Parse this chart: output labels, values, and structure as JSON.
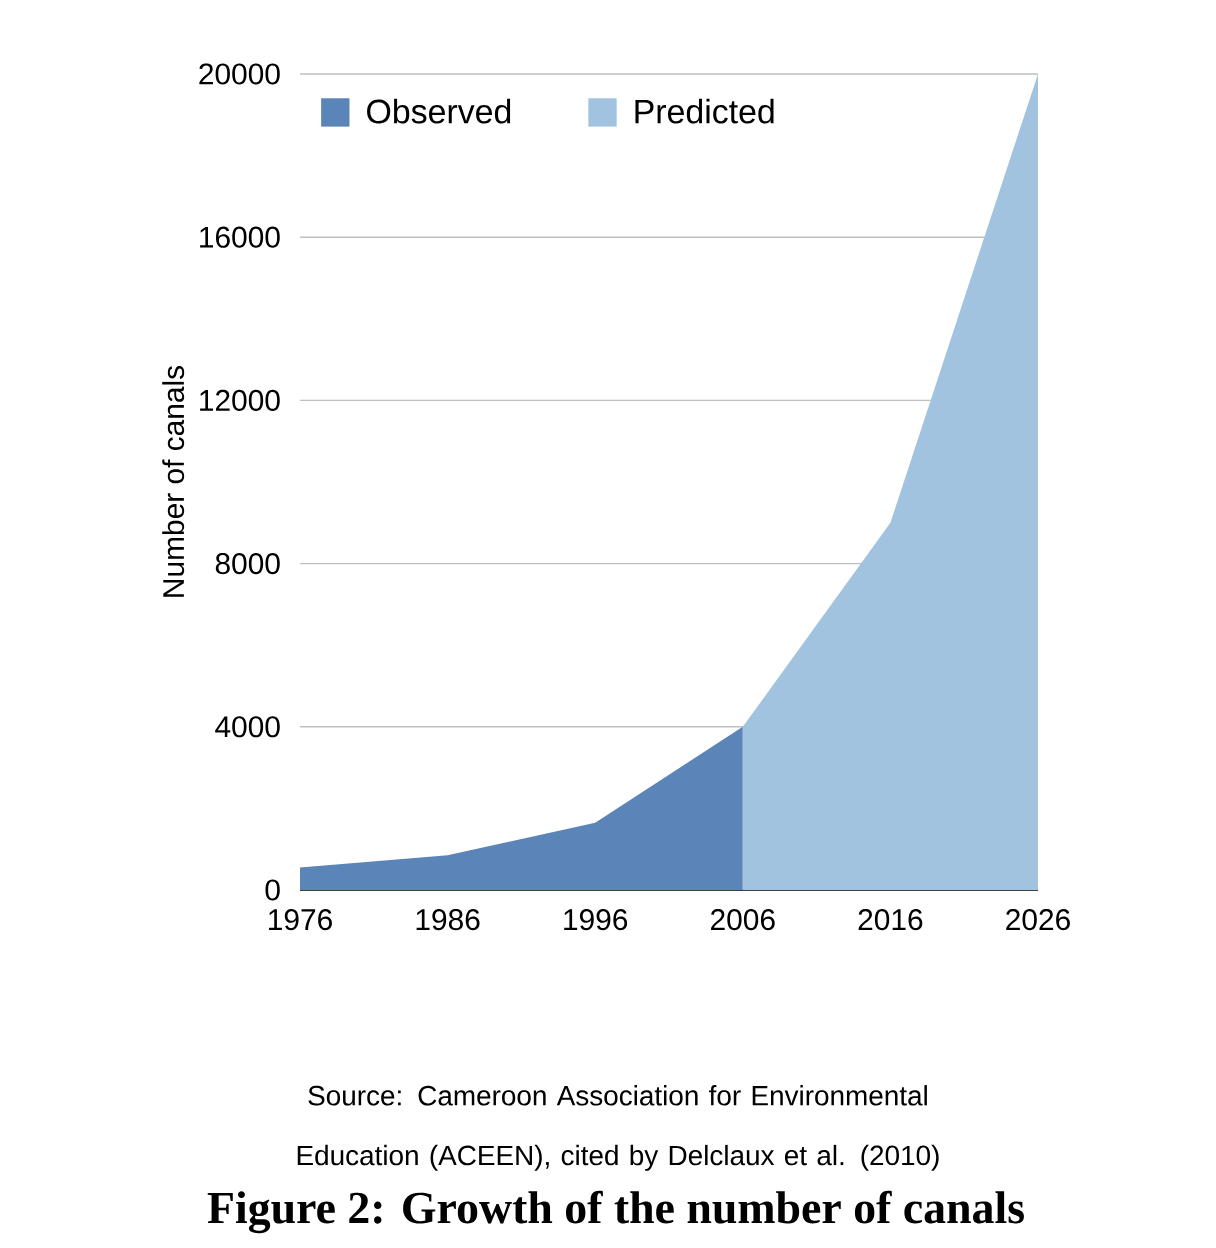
{
  "chart_data": {
    "type": "area",
    "title": "**Figure 2: Growth of the number of canals**",
    "ylabel": "Number of canals",
    "annotations": [
      "Source:  Cameroon Association for Environmental Education (ACEEN), cited by Delclaux et al. (2010)"
    ],
    "series": [
      {
        "name": "Observed",
        "color": "#5b84b8",
        "x": [
          1976,
          1986,
          1996,
          2006
        ],
        "values": [
          550,
          850,
          1650,
          4000
        ]
      },
      {
        "name": "Predicted",
        "color": "#a2c3df",
        "x": [
          2006,
          2016,
          2026
        ],
        "values": [
          4000,
          9000,
          20000
        ]
      }
    ],
    "xlim": [
      1976,
      2026
    ],
    "xticks": [
      1976,
      1986,
      1996,
      2006,
      2016,
      2026
    ],
    "ylim": [
      0,
      20000
    ],
    "yticks": [
      0,
      4000,
      8000,
      12000,
      16000,
      20000
    ],
    "grid": "y",
    "legend": "top left"
  }
}
